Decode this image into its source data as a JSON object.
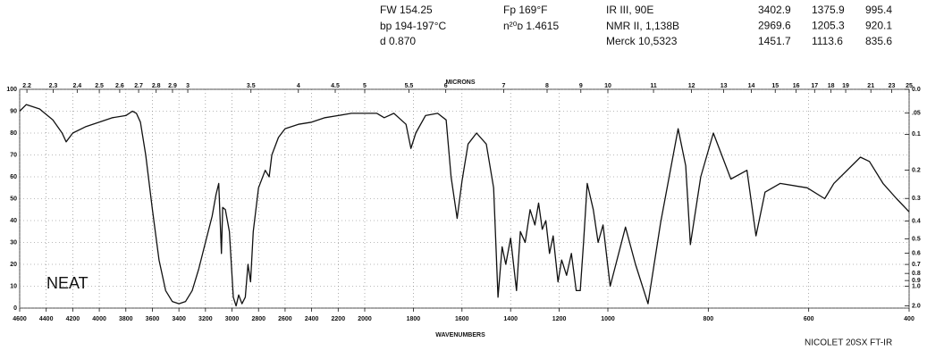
{
  "chart_data": {
    "type": "line",
    "header": {
      "props": [
        "FW 154.25",
        "bp 194-197°C",
        "d 0.870"
      ],
      "props2": [
        "Fp 169°F",
        "n²⁰ᴅ 1.4615"
      ],
      "refs": [
        "IR III, 90E",
        "NMR II, 1,138B",
        "Merck 10,5323"
      ]
    },
    "peaks": [
      [
        3402.9,
        1375.9,
        995.4
      ],
      [
        2969.6,
        1205.3,
        920.1
      ],
      [
        1451.7,
        1113.6,
        835.6
      ]
    ],
    "annotation": "NEAT",
    "instrument": "NICOLET 20SX FT-IR",
    "xlabel": "WAVENUMBERS",
    "x2label": "MICRONS",
    "color": "#111111",
    "grid": true,
    "xlim": [
      4600,
      400
    ],
    "x_scale_breaks": [
      2000,
      1000
    ],
    "xticks": [
      4600,
      4400,
      4200,
      4000,
      3800,
      3600,
      3400,
      3200,
      3000,
      2800,
      2600,
      2400,
      2200,
      2000,
      1800,
      1600,
      1400,
      1200,
      1000,
      800,
      600,
      400
    ],
    "x2_scale": "microns",
    "x2ticks": [
      2.2,
      2.3,
      2.4,
      2.5,
      2.6,
      2.7,
      2.8,
      2.9,
      3,
      3.5,
      4,
      4.5,
      5,
      5.5,
      6,
      7,
      8,
      9,
      10,
      11,
      12,
      13,
      14,
      15,
      16,
      17,
      18,
      19,
      21,
      23,
      25
    ],
    "ylim": [
      0,
      100
    ],
    "yticks": [
      0,
      10,
      20,
      30,
      40,
      50,
      60,
      70,
      80,
      90,
      100
    ],
    "y2_scale": "absorbance",
    "y2ticks": [
      {
        "value": 0,
        "label": "0.0"
      },
      {
        "value": 0.05,
        "label": ".05"
      },
      0.1,
      0.2,
      0.3,
      0.4,
      0.5,
      0.6,
      0.7,
      0.8,
      0.9,
      {
        "value": 1,
        "label": "1.0"
      },
      {
        "value": 2,
        "label": "2.0"
      }
    ],
    "x": [
      4600,
      4550,
      4450,
      4350,
      4280,
      4250,
      4200,
      4100,
      4000,
      3900,
      3800,
      3750,
      3720,
      3690,
      3650,
      3600,
      3550,
      3500,
      3450,
      3400,
      3350,
      3300,
      3250,
      3200,
      3150,
      3120,
      3100,
      3080,
      3070,
      3050,
      3020,
      2990,
      2969.6,
      2950,
      2925,
      2900,
      2880,
      2860,
      2840,
      2800,
      2750,
      2720,
      2700,
      2650,
      2600,
      2500,
      2400,
      2300,
      2200,
      2100,
      2000,
      1950,
      1920,
      1880,
      1830,
      1810,
      1790,
      1750,
      1700,
      1665,
      1645,
      1620,
      1600,
      1575,
      1540,
      1500,
      1470,
      1451.7,
      1435,
      1420,
      1400,
      1375.9,
      1360,
      1340,
      1320,
      1300,
      1285,
      1270,
      1255,
      1240,
      1225,
      1205.3,
      1190,
      1170,
      1150,
      1130,
      1113.6,
      1100,
      1085,
      1060,
      1040,
      1020,
      995.4,
      965,
      945,
      920.1,
      895,
      860,
      845,
      835.6,
      815,
      790,
      755,
      723,
      705,
      687,
      657,
      603,
      568,
      550,
      497,
      479,
      452,
      425,
      400
    ],
    "values": [
      90,
      93,
      91,
      86,
      80,
      76,
      80,
      83,
      85,
      87,
      88,
      90,
      89,
      85,
      70,
      45,
      22,
      8,
      3,
      2,
      3,
      8,
      18,
      30,
      42,
      52,
      57,
      25,
      46,
      45,
      35,
      5,
      1,
      6,
      2,
      5,
      20,
      12,
      35,
      55,
      63,
      60,
      70,
      78,
      82,
      84,
      85,
      87,
      88,
      89,
      89,
      89,
      87,
      89,
      84,
      73,
      80,
      88,
      89,
      86,
      60,
      41,
      58,
      75,
      80,
      75,
      55,
      5,
      28,
      20,
      32,
      8,
      35,
      30,
      45,
      38,
      48,
      36,
      40,
      25,
      33,
      12,
      22,
      15,
      25,
      8,
      8,
      30,
      57,
      45,
      30,
      38,
      10,
      37,
      20,
      2,
      39,
      82,
      65,
      29,
      60,
      80,
      59,
      63,
      33,
      53,
      57,
      55,
      50,
      57,
      69,
      67,
      57,
      50,
      44
    ]
  }
}
